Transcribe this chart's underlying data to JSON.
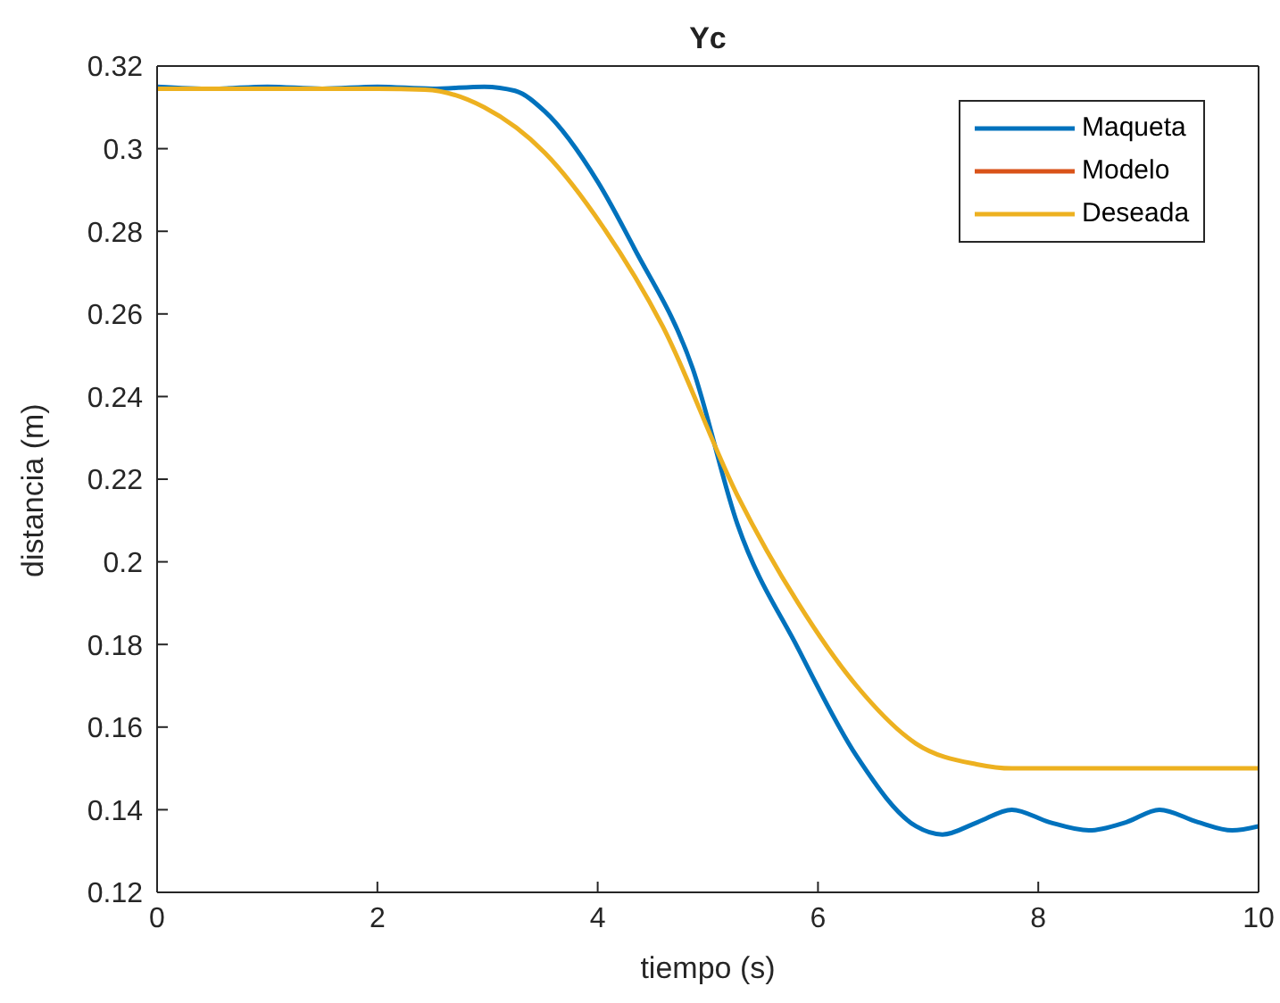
{
  "chart_data": {
    "type": "line",
    "title": "Yc",
    "xlabel": "tiempo (s)",
    "ylabel": "distancia (m)",
    "xlim": [
      0,
      10
    ],
    "xticks": [
      0,
      2,
      4,
      6,
      8,
      10
    ],
    "ylim": [
      0.12,
      0.32
    ],
    "yticks": [
      0.12,
      0.14,
      0.16,
      0.18,
      0.2,
      0.22,
      0.24,
      0.26,
      0.28,
      0.3,
      0.32
    ],
    "legend": "top right",
    "grid": false,
    "marker": "none",
    "line_style": "solid",
    "series": [
      {
        "name": "Maqueta",
        "color": "#0072bd",
        "x": [
          0,
          0.5,
          1,
          1.5,
          2,
          2.5,
          2.97,
          3.25,
          3.52,
          4,
          4.33,
          4.86,
          5.27,
          5.82,
          6.35,
          6.89,
          7.13,
          7.45,
          7.76,
          8.1,
          8.46,
          8.8,
          9.1,
          9.45,
          9.76,
          10
        ],
        "values": [
          0.315,
          0.3145,
          0.315,
          0.3145,
          0.315,
          0.3145,
          0.315,
          0.314,
          0.309,
          0.292,
          0.276,
          0.247,
          0.209,
          0.179,
          0.153,
          0.136,
          0.134,
          0.137,
          0.14,
          0.137,
          0.135,
          0.137,
          0.14,
          0.137,
          0.135,
          0.136
        ]
      },
      {
        "name": "Modelo",
        "color": "#d95319"
      },
      {
        "name": "Deseada",
        "color": "#edb120",
        "x": [
          0,
          1,
          2,
          2.43,
          2.97,
          3.52,
          4.05,
          4.59,
          5.27,
          5.82,
          6.35,
          6.89,
          7.44,
          7.76,
          10
        ],
        "values": [
          0.3145,
          0.3145,
          0.3145,
          0.3143,
          0.31,
          0.299,
          0.281,
          0.257,
          0.216,
          0.19,
          0.17,
          0.156,
          0.151,
          0.15,
          0.15
        ]
      }
    ]
  }
}
